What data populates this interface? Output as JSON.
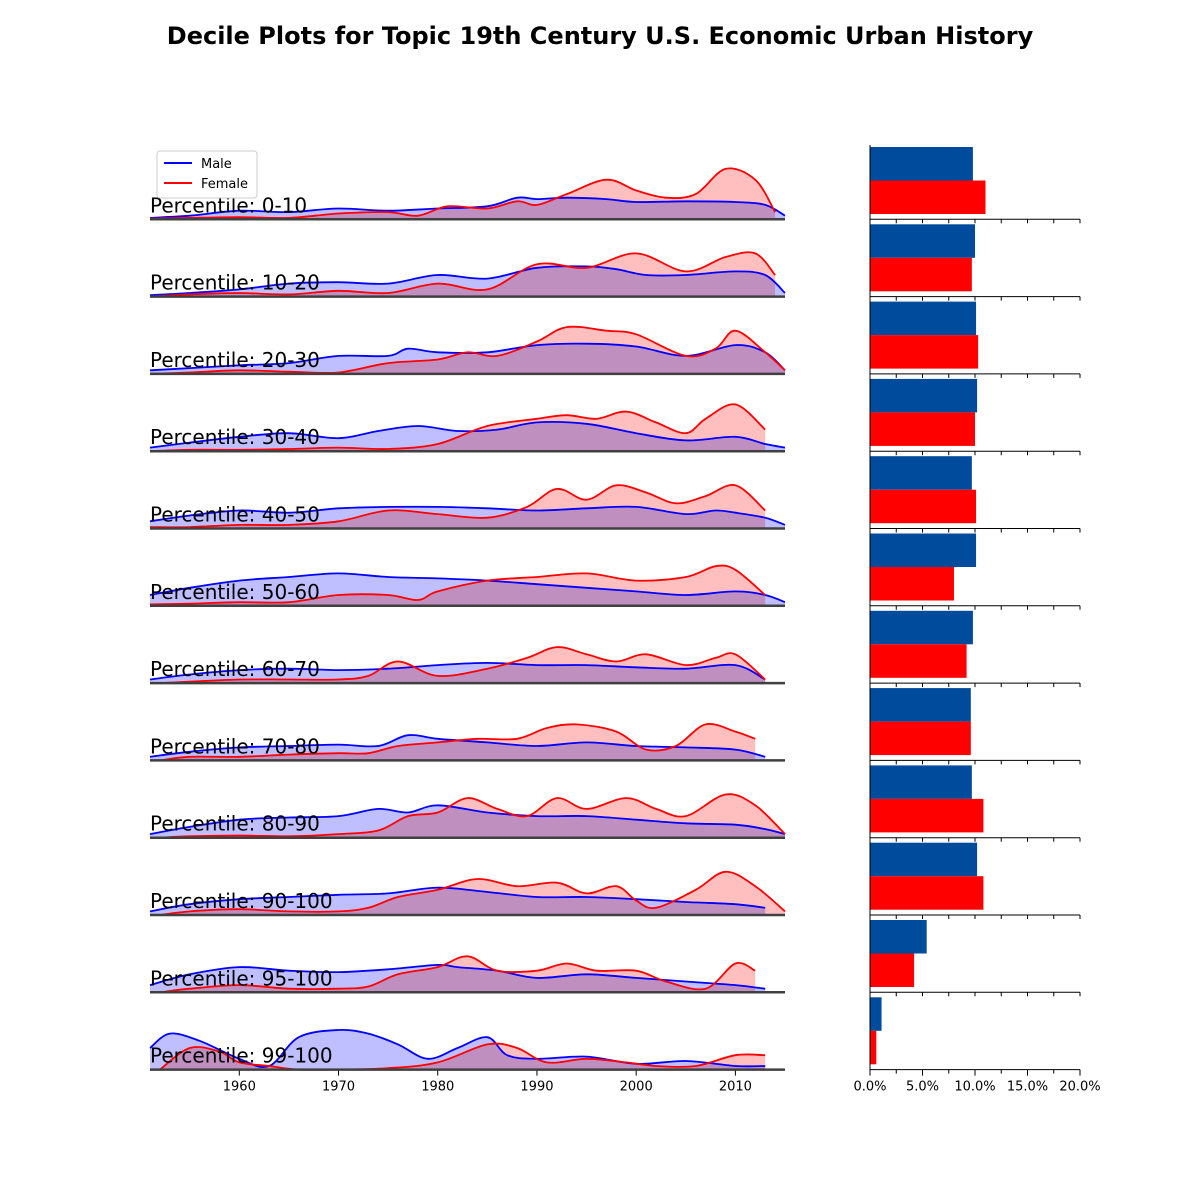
{
  "chart_data": {
    "type": "area",
    "title": "Decile Plots for Topic 19th Century U.S. Economic Urban History",
    "legend": {
      "placement": "top-left",
      "entries": [
        "Male",
        "Female"
      ]
    },
    "colors": {
      "male_line": "#0000ff",
      "female_line": "#ff0000",
      "male_fill": "#bcbcff",
      "female_fill": "#ffbcbc",
      "overlap_fill": "#cf8fc4",
      "male_bar": "#004b9b",
      "female_bar": "#ff0000",
      "baseline": "#404040"
    },
    "x_axis": {
      "range": [
        1951,
        2015
      ],
      "ticks": [
        "1960",
        "1970",
        "1980",
        "1990",
        "2000",
        "2010"
      ]
    },
    "bar_axis": {
      "range": [
        0,
        20
      ],
      "ticks": [
        "0.0%",
        "5.0%",
        "10.0%",
        "15.0%",
        "20.0%"
      ]
    },
    "panels": [
      {
        "label": "Percentile: 0-10",
        "male": {
          "x": [
            1951,
            1955,
            1960,
            1965,
            1970,
            1975,
            1980,
            1985,
            1988,
            1990,
            1993,
            1997,
            2000,
            2005,
            2010,
            2013,
            2015
          ],
          "y": [
            0.02,
            0.05,
            0.12,
            0.1,
            0.15,
            0.12,
            0.15,
            0.18,
            0.3,
            0.28,
            0.3,
            0.28,
            0.24,
            0.25,
            0.24,
            0.2,
            0.05
          ]
        },
        "female": {
          "x": [
            1951,
            1955,
            1960,
            1965,
            1970,
            1975,
            1978,
            1981,
            1985,
            1988,
            1990,
            1993,
            1997,
            2000,
            2003,
            2006,
            2009,
            2012,
            2014
          ],
          "y": [
            0.01,
            0.02,
            0.03,
            0.02,
            0.08,
            0.1,
            0.05,
            0.18,
            0.15,
            0.25,
            0.2,
            0.35,
            0.55,
            0.4,
            0.3,
            0.35,
            0.7,
            0.55,
            0.1
          ]
        },
        "bar": {
          "male": 9.8,
          "female": 11.0
        }
      },
      {
        "label": "Percentile: 10-20",
        "male": {
          "x": [
            1951,
            1955,
            1960,
            1965,
            1970,
            1975,
            1980,
            1985,
            1990,
            1995,
            1998,
            2001,
            2005,
            2010,
            2013,
            2015
          ],
          "y": [
            0.02,
            0.05,
            0.1,
            0.18,
            0.2,
            0.18,
            0.3,
            0.25,
            0.4,
            0.42,
            0.38,
            0.3,
            0.3,
            0.35,
            0.3,
            0.05
          ]
        },
        "female": {
          "x": [
            1951,
            1955,
            1960,
            1965,
            1970,
            1975,
            1980,
            1985,
            1990,
            1995,
            2000,
            2005,
            2009,
            2012,
            2014
          ],
          "y": [
            0.0,
            0.03,
            0.05,
            0.03,
            0.08,
            0.05,
            0.18,
            0.1,
            0.45,
            0.4,
            0.6,
            0.35,
            0.55,
            0.6,
            0.3
          ]
        },
        "bar": {
          "male": 10.0,
          "female": 9.7
        }
      },
      {
        "label": "Percentile: 20-30",
        "male": {
          "x": [
            1951,
            1955,
            1960,
            1965,
            1970,
            1975,
            1977,
            1980,
            1985,
            1990,
            1995,
            2000,
            2005,
            2010,
            2013,
            2015
          ],
          "y": [
            0.05,
            0.08,
            0.12,
            0.15,
            0.25,
            0.25,
            0.35,
            0.3,
            0.3,
            0.4,
            0.42,
            0.38,
            0.25,
            0.4,
            0.3,
            0.05
          ]
        },
        "female": {
          "x": [
            1951,
            1955,
            1960,
            1965,
            1970,
            1975,
            1980,
            1983,
            1986,
            1990,
            1993,
            1997,
            2000,
            2005,
            2008,
            2010,
            2013,
            2015
          ],
          "y": [
            0.0,
            0.02,
            0.05,
            0.03,
            0.02,
            0.15,
            0.2,
            0.3,
            0.25,
            0.45,
            0.65,
            0.6,
            0.55,
            0.25,
            0.35,
            0.6,
            0.3,
            0.05
          ]
        },
        "bar": {
          "male": 10.1,
          "female": 10.3
        }
      },
      {
        "label": "Percentile: 30-40",
        "male": {
          "x": [
            1951,
            1955,
            1960,
            1965,
            1970,
            1974,
            1978,
            1982,
            1986,
            1990,
            1995,
            2000,
            2005,
            2010,
            2013,
            2015
          ],
          "y": [
            0.05,
            0.12,
            0.2,
            0.25,
            0.18,
            0.28,
            0.35,
            0.28,
            0.3,
            0.4,
            0.38,
            0.25,
            0.15,
            0.2,
            0.1,
            0.05
          ]
        },
        "female": {
          "x": [
            1951,
            1955,
            1960,
            1965,
            1970,
            1975,
            1980,
            1985,
            1990,
            1993,
            1996,
            1999,
            2002,
            2005,
            2007,
            2010,
            2013
          ],
          "y": [
            0.0,
            0.02,
            0.02,
            0.03,
            0.05,
            0.03,
            0.1,
            0.35,
            0.45,
            0.5,
            0.45,
            0.55,
            0.4,
            0.25,
            0.45,
            0.65,
            0.3
          ]
        },
        "bar": {
          "male": 10.2,
          "female": 10.0
        }
      },
      {
        "label": "Percentile: 40-50",
        "male": {
          "x": [
            1951,
            1955,
            1960,
            1965,
            1970,
            1975,
            1980,
            1985,
            1990,
            1995,
            2000,
            2005,
            2008,
            2010,
            2013,
            2015
          ],
          "y": [
            0.1,
            0.18,
            0.25,
            0.22,
            0.28,
            0.3,
            0.3,
            0.28,
            0.25,
            0.28,
            0.3,
            0.2,
            0.25,
            0.22,
            0.15,
            0.05
          ]
        },
        "female": {
          "x": [
            1951,
            1955,
            1960,
            1965,
            1970,
            1975,
            1980,
            1985,
            1989,
            1992,
            1995,
            1998,
            2001,
            2004,
            2007,
            2010,
            2013
          ],
          "y": [
            0.02,
            0.02,
            0.05,
            0.05,
            0.1,
            0.25,
            0.2,
            0.15,
            0.3,
            0.55,
            0.4,
            0.6,
            0.5,
            0.35,
            0.45,
            0.6,
            0.25
          ]
        },
        "bar": {
          "male": 9.7,
          "female": 10.1
        }
      },
      {
        "label": "Percentile: 50-60",
        "male": {
          "x": [
            1951,
            1955,
            1960,
            1965,
            1970,
            1975,
            1980,
            1985,
            1990,
            1995,
            2000,
            2005,
            2010,
            2013,
            2015
          ],
          "y": [
            0.15,
            0.25,
            0.35,
            0.4,
            0.45,
            0.4,
            0.38,
            0.35,
            0.3,
            0.25,
            0.2,
            0.15,
            0.2,
            0.15,
            0.05
          ]
        },
        "female": {
          "x": [
            1951,
            1955,
            1960,
            1965,
            1970,
            1975,
            1978,
            1980,
            1985,
            1990,
            1995,
            2000,
            2005,
            2008,
            2010,
            2013
          ],
          "y": [
            0.02,
            0.03,
            0.05,
            0.05,
            0.15,
            0.15,
            0.08,
            0.2,
            0.35,
            0.4,
            0.45,
            0.35,
            0.4,
            0.55,
            0.5,
            0.15
          ]
        },
        "bar": {
          "male": 10.1,
          "female": 8.0
        }
      },
      {
        "label": "Percentile: 60-70",
        "male": {
          "x": [
            1951,
            1955,
            1960,
            1965,
            1970,
            1975,
            1980,
            1985,
            1990,
            1995,
            2000,
            2005,
            2010,
            2013
          ],
          "y": [
            0.05,
            0.12,
            0.18,
            0.2,
            0.18,
            0.2,
            0.25,
            0.28,
            0.25,
            0.25,
            0.22,
            0.2,
            0.25,
            0.05
          ]
        },
        "female": {
          "x": [
            1952,
            1955,
            1960,
            1965,
            1970,
            1973,
            1976,
            1980,
            1985,
            1989,
            1992,
            1995,
            1998,
            2001,
            2005,
            2008,
            2010,
            2013
          ],
          "y": [
            0.0,
            0.02,
            0.05,
            0.05,
            0.05,
            0.1,
            0.3,
            0.1,
            0.2,
            0.35,
            0.5,
            0.4,
            0.3,
            0.4,
            0.25,
            0.35,
            0.4,
            0.05
          ]
        },
        "bar": {
          "male": 9.8,
          "female": 9.2
        }
      },
      {
        "label": "Percentile: 70-80",
        "male": {
          "x": [
            1951,
            1955,
            1960,
            1965,
            1970,
            1974,
            1977,
            1980,
            1985,
            1990,
            1995,
            2000,
            2005,
            2010,
            2013
          ],
          "y": [
            0.05,
            0.12,
            0.18,
            0.2,
            0.22,
            0.2,
            0.35,
            0.3,
            0.25,
            0.2,
            0.25,
            0.2,
            0.18,
            0.15,
            0.05
          ]
        },
        "female": {
          "x": [
            1952,
            1955,
            1960,
            1965,
            1970,
            1973,
            1976,
            1980,
            1984,
            1988,
            1991,
            1994,
            1998,
            2001,
            2004,
            2007,
            2010,
            2012
          ],
          "y": [
            0.0,
            0.05,
            0.05,
            0.08,
            0.1,
            0.1,
            0.2,
            0.25,
            0.3,
            0.3,
            0.45,
            0.5,
            0.4,
            0.15,
            0.2,
            0.5,
            0.4,
            0.3
          ]
        },
        "bar": {
          "male": 9.6,
          "female": 9.6
        }
      },
      {
        "label": "Percentile: 80-90",
        "male": {
          "x": [
            1951,
            1955,
            1960,
            1965,
            1970,
            1974,
            1977,
            1980,
            1985,
            1990,
            1995,
            2000,
            2005,
            2010,
            2013,
            2015
          ],
          "y": [
            0.05,
            0.15,
            0.25,
            0.28,
            0.3,
            0.4,
            0.35,
            0.45,
            0.35,
            0.3,
            0.3,
            0.25,
            0.2,
            0.18,
            0.12,
            0.05
          ]
        },
        "female": {
          "x": [
            1952,
            1955,
            1960,
            1965,
            1970,
            1974,
            1977,
            1980,
            1983,
            1986,
            1989,
            1992,
            1995,
            1999,
            2002,
            2005,
            2009,
            2012,
            2015
          ],
          "y": [
            0.0,
            0.02,
            0.03,
            0.02,
            0.05,
            0.1,
            0.3,
            0.35,
            0.55,
            0.4,
            0.3,
            0.55,
            0.4,
            0.55,
            0.4,
            0.3,
            0.6,
            0.45,
            0.05
          ]
        },
        "bar": {
          "male": 9.7,
          "female": 10.8
        }
      },
      {
        "label": "Percentile: 90-100",
        "male": {
          "x": [
            1951,
            1955,
            1960,
            1965,
            1970,
            1975,
            1980,
            1985,
            1990,
            1995,
            2000,
            2005,
            2010,
            2013
          ],
          "y": [
            0.05,
            0.15,
            0.22,
            0.25,
            0.28,
            0.3,
            0.38,
            0.32,
            0.25,
            0.25,
            0.22,
            0.18,
            0.15,
            0.1
          ]
        },
        "female": {
          "x": [
            1952,
            1955,
            1960,
            1965,
            1970,
            1973,
            1976,
            1980,
            1984,
            1988,
            1992,
            1995,
            1998,
            2000,
            2002,
            2006,
            2009,
            2012,
            2015
          ],
          "y": [
            0.0,
            0.05,
            0.08,
            0.05,
            0.05,
            0.1,
            0.25,
            0.35,
            0.5,
            0.4,
            0.45,
            0.3,
            0.4,
            0.2,
            0.1,
            0.35,
            0.6,
            0.4,
            0.05
          ]
        },
        "bar": {
          "male": 10.2,
          "female": 10.8
        }
      },
      {
        "label": "Percentile: 95-100",
        "male": {
          "x": [
            1951,
            1955,
            1960,
            1965,
            1970,
            1975,
            1980,
            1982,
            1986,
            1990,
            1995,
            2000,
            2005,
            2010,
            2013
          ],
          "y": [
            0.1,
            0.25,
            0.35,
            0.3,
            0.28,
            0.32,
            0.38,
            0.35,
            0.3,
            0.2,
            0.25,
            0.2,
            0.15,
            0.1,
            0.05
          ]
        },
        "female": {
          "x": [
            1952,
            1955,
            1960,
            1965,
            1970,
            1973,
            1976,
            1980,
            1983,
            1986,
            1990,
            1993,
            1996,
            2000,
            2003,
            2007,
            2010,
            2012
          ],
          "y": [
            0.0,
            0.05,
            0.1,
            0.05,
            0.05,
            0.08,
            0.25,
            0.35,
            0.5,
            0.3,
            0.3,
            0.4,
            0.3,
            0.3,
            0.15,
            0.05,
            0.4,
            0.3
          ]
        },
        "bar": {
          "male": 5.4,
          "female": 4.2
        }
      },
      {
        "label": "Percentile: 99-100",
        "male": {
          "x": [
            1951,
            1953,
            1956,
            1960,
            1963,
            1966,
            1970,
            1973,
            1976,
            1979,
            1982,
            1985,
            1987,
            1990,
            1995,
            2000,
            2005,
            2010,
            2013
          ],
          "y": [
            0.3,
            0.5,
            0.4,
            0.15,
            0.05,
            0.45,
            0.55,
            0.5,
            0.35,
            0.15,
            0.3,
            0.45,
            0.2,
            0.15,
            0.18,
            0.08,
            0.12,
            0.05,
            0.05
          ]
        },
        "female": {
          "x": [
            1952,
            1955,
            1958,
            1960,
            1963,
            1966,
            1970,
            1975,
            1980,
            1985,
            1988,
            1991,
            1995,
            1999,
            2002,
            2006,
            2010,
            2013
          ],
          "y": [
            0.0,
            0.3,
            0.25,
            0.1,
            0.05,
            0.0,
            0.0,
            0.02,
            0.1,
            0.35,
            0.3,
            0.1,
            0.15,
            0.1,
            0.05,
            0.05,
            0.2,
            0.2
          ]
        },
        "bar": {
          "male": 1.1,
          "female": 0.6
        }
      }
    ]
  }
}
